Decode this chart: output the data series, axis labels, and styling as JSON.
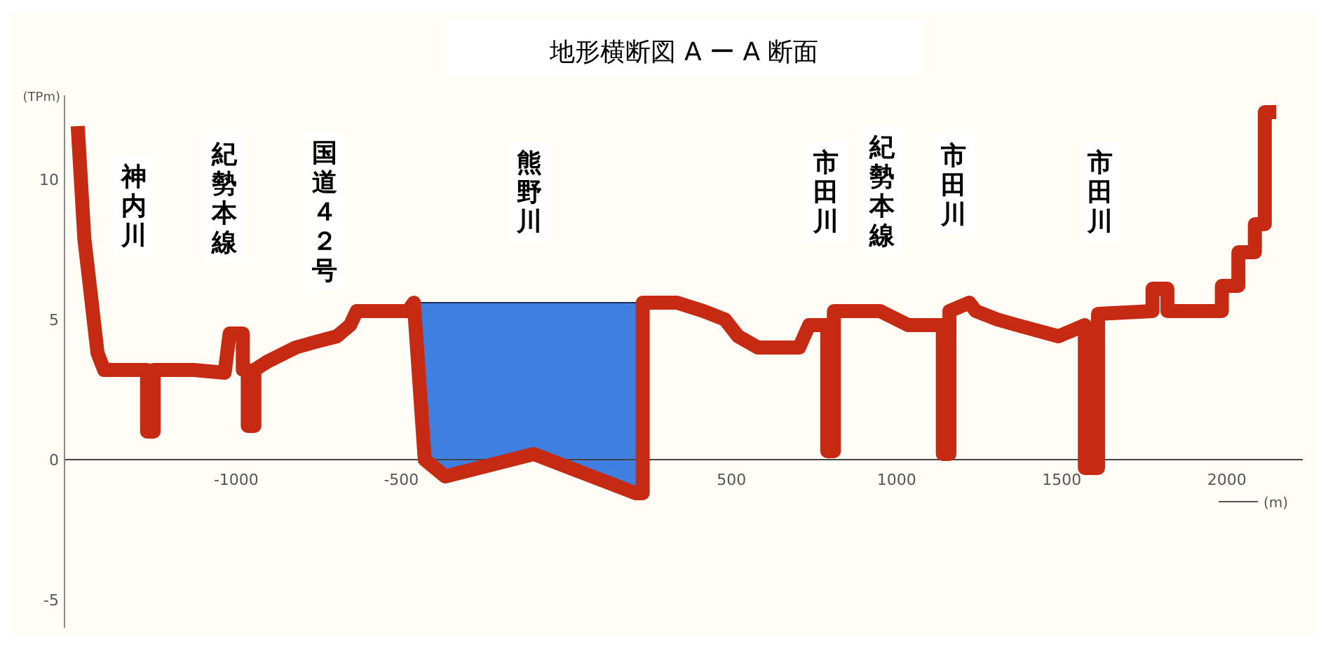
{
  "chart_data": {
    "type": "line",
    "title": "地形横断図 A ー A 断面",
    "ylabel": "(TPm)",
    "xlabel": "(m)",
    "xlim": [
      -1520,
      2230
    ],
    "ylim": [
      -6,
      13
    ],
    "xticks": [
      -1000,
      -500,
      500,
      1000,
      1500,
      2000
    ],
    "yticks": [
      -5,
      0,
      5,
      10
    ],
    "series": [
      {
        "color": "#c62a12",
        "x": [
          -1480,
          -1460,
          -1420,
          -1400,
          -1270,
          -1270,
          -1250,
          -1250,
          -1130,
          -1035,
          -1020,
          -980,
          -980,
          -965,
          -965,
          -945,
          -945,
          -905,
          -820,
          -760,
          -695,
          -655,
          -635,
          -480,
          -462,
          -429,
          -367,
          -99,
          210,
          231,
          231,
          335,
          415,
          480,
          520,
          580,
          705,
          735,
          790,
          790,
          810,
          810,
          950,
          1035,
          1140,
          1140,
          1160,
          1160,
          1220,
          1240,
          1305,
          1365,
          1490,
          1570,
          1570,
          1610,
          1610,
          1775,
          1775,
          1820,
          1820,
          1985,
          1985,
          2035,
          2035,
          2085,
          2085,
          2115,
          2115,
          2150
        ],
        "values": [
          11.9,
          7.9,
          3.8,
          3.2,
          3.2,
          1.0,
          1.0,
          3.2,
          3.2,
          3.1,
          4.5,
          4.5,
          3.2,
          3.2,
          1.2,
          1.2,
          3.2,
          3.5,
          4.0,
          4.2,
          4.4,
          4.8,
          5.3,
          5.3,
          5.6,
          0,
          -0.6,
          0.2,
          -1.2,
          -1.2,
          5.6,
          5.6,
          5.3,
          5.0,
          4.4,
          4.0,
          4.0,
          4.8,
          4.8,
          0.3,
          0.3,
          5.3,
          5.3,
          4.8,
          4.8,
          0.2,
          0.2,
          5.3,
          5.6,
          5.3,
          5.0,
          4.8,
          4.4,
          4.8,
          -0.3,
          -0.3,
          5.2,
          5.3,
          6.1,
          6.1,
          5.3,
          5.3,
          6.2,
          6.2,
          7.4,
          7.4,
          8.4,
          8.4,
          12.4,
          12.4
        ]
      }
    ],
    "annotations": [
      "神内川",
      "紀勢本線",
      "国道４２号",
      "熊野川",
      "市田川",
      "紀勢本線",
      "市田川",
      "市田川"
    ]
  }
}
